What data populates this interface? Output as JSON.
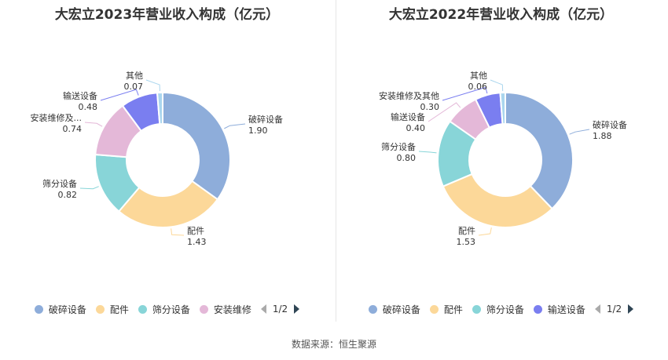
{
  "source": "数据来源：恒生聚源",
  "colors": [
    "#8eadda",
    "#fcd899",
    "#88d5d8",
    "#e4b8d8",
    "#7a7ef0",
    "#aad6ee"
  ],
  "chart_data": [
    {
      "type": "pie",
      "title": "大宏立2023年营业收入构成（亿元）",
      "slices": [
        {
          "name": "破碎设备",
          "value": 1.9,
          "label_name": "破碎设备",
          "label_value": "1.90"
        },
        {
          "name": "配件",
          "value": 1.43,
          "label_name": "配件",
          "label_value": "1.43"
        },
        {
          "name": "筛分设备",
          "value": 0.82,
          "label_name": "筛分设备",
          "label_value": "0.82"
        },
        {
          "name": "安装维修",
          "value": 0.74,
          "label_name": "安装维修及...",
          "label_value": "0.74"
        },
        {
          "name": "输送设备",
          "value": 0.48,
          "label_name": "输送设备",
          "label_value": "0.48"
        },
        {
          "name": "其他",
          "value": 0.07,
          "label_name": "其他",
          "label_value": "0.07"
        }
      ],
      "legend": [
        "破碎设备",
        "配件",
        "筛分设备",
        "安装维修"
      ],
      "page": "1/2"
    },
    {
      "type": "pie",
      "title": "大宏立2022年营业收入构成（亿元）",
      "slices": [
        {
          "name": "破碎设备",
          "value": 1.88,
          "label_name": "破碎设备",
          "label_value": "1.88"
        },
        {
          "name": "配件",
          "value": 1.53,
          "label_name": "配件",
          "label_value": "1.53"
        },
        {
          "name": "筛分设备",
          "value": 0.8,
          "label_name": "筛分设备",
          "label_value": "0.80"
        },
        {
          "name": "输送设备",
          "value": 0.4,
          "label_name": "输送设备",
          "label_value": "0.40"
        },
        {
          "name": "安装维修及其他",
          "value": 0.3,
          "label_name": "安装维修及其他",
          "label_value": "0.30"
        },
        {
          "name": "其他",
          "value": 0.06,
          "label_name": "其他",
          "label_value": "0.06"
        }
      ],
      "legend": [
        "破碎设备",
        "配件",
        "筛分设备",
        "输送设备"
      ],
      "page": "1/2"
    }
  ]
}
